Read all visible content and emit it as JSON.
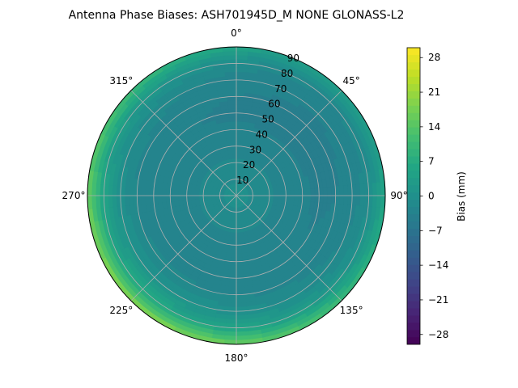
{
  "chart_data": {
    "type": "heatmap",
    "projection": "polar",
    "title": "Antenna Phase Biases: ASH701945D_M    NONE GLONASS-L2",
    "angular_axis": {
      "zero_location": "top",
      "direction": "clockwise",
      "tick_values": [
        0,
        45,
        90,
        135,
        180,
        225,
        270,
        315
      ],
      "tick_labels": [
        "0°",
        "45°",
        "90°",
        "135°",
        "180°",
        "225°",
        "270°",
        "315°"
      ]
    },
    "radial_axis": {
      "range": [
        0,
        90
      ],
      "tick_values": [
        10,
        20,
        30,
        40,
        50,
        60,
        70,
        80,
        90
      ],
      "tick_labels": [
        "10",
        "20",
        "30",
        "40",
        "50",
        "60",
        "70",
        "80",
        "90"
      ]
    },
    "grid": true,
    "colormap": "viridis",
    "colorbar": {
      "label": "Bias (mm)",
      "range": [
        -30,
        30
      ],
      "levels": 41,
      "tick_values": [
        -28,
        -21,
        -14,
        -7,
        0,
        7,
        14,
        21,
        28
      ],
      "tick_labels": [
        "−28",
        "−21",
        "−14",
        "−7",
        "0",
        "7",
        "14",
        "21",
        "28"
      ]
    },
    "bias_profile": {
      "radius": [
        0,
        10,
        20,
        30,
        40,
        50,
        60,
        70,
        75,
        80,
        85,
        90
      ],
      "values": [
        0,
        -1,
        -2,
        -3,
        -3.5,
        -3.5,
        -3,
        -1.5,
        0,
        2,
        6,
        11
      ],
      "azimuth_modulation": {
        "amplitude": [
          0,
          0,
          0,
          0,
          0,
          0.5,
          1,
          2,
          3,
          4,
          6,
          8
        ],
        "peak_azimuth": 225
      }
    }
  }
}
